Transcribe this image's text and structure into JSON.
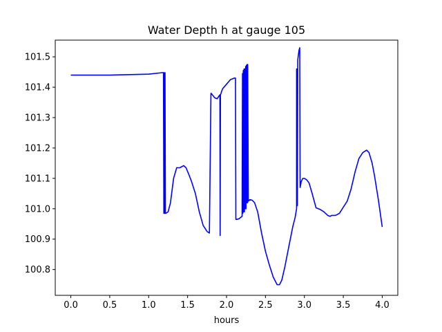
{
  "chart_data": {
    "type": "line",
    "title": "Water Depth h at gauge 105",
    "xlabel": "hours",
    "ylabel": "",
    "xlim": [
      -0.2,
      4.2
    ],
    "ylim": [
      100.715,
      101.555
    ],
    "xticks": [
      0.0,
      0.5,
      1.0,
      1.5,
      2.0,
      2.5,
      3.0,
      3.5,
      4.0
    ],
    "xtick_labels": [
      "0.0",
      "0.5",
      "1.0",
      "1.5",
      "2.0",
      "2.5",
      "3.0",
      "3.5",
      "4.0"
    ],
    "yticks": [
      100.8,
      100.9,
      101.0,
      101.1,
      101.2,
      101.3,
      101.4,
      101.5
    ],
    "ytick_labels": [
      "100.8",
      "100.9",
      "101.0",
      "101.1",
      "101.2",
      "101.3",
      "101.4",
      "101.5"
    ],
    "grid": false,
    "series": [
      {
        "color": "#0000ff",
        "x": [
          0.0,
          0.5,
          1.0,
          1.18,
          1.19,
          1.195,
          1.2,
          1.205,
          1.21,
          1.215,
          1.22,
          1.25,
          1.28,
          1.32,
          1.36,
          1.4,
          1.45,
          1.48,
          1.52,
          1.55,
          1.6,
          1.65,
          1.7,
          1.75,
          1.78,
          1.8,
          1.802,
          1.85,
          1.88,
          1.9,
          1.915,
          1.918,
          1.922,
          1.93,
          1.935,
          1.95,
          2.0,
          2.05,
          2.1,
          2.115,
          2.12,
          2.13,
          2.16,
          2.2,
          2.205,
          2.21,
          2.215,
          2.22,
          2.225,
          2.23,
          2.235,
          2.24,
          2.245,
          2.25,
          2.255,
          2.26,
          2.265,
          2.27,
          2.272,
          2.28,
          2.3,
          2.33,
          2.36,
          2.4,
          2.45,
          2.5,
          2.55,
          2.6,
          2.65,
          2.68,
          2.71,
          2.75,
          2.8,
          2.85,
          2.88,
          2.9,
          2.9,
          2.905,
          2.91,
          2.915,
          2.92,
          2.93,
          2.935,
          2.94,
          2.945,
          2.96,
          2.98,
          3.0,
          3.03,
          3.06,
          3.1,
          3.15,
          3.2,
          3.25,
          3.3,
          3.33,
          3.35,
          3.4,
          3.45,
          3.5,
          3.55,
          3.6,
          3.65,
          3.7,
          3.75,
          3.8,
          3.83,
          3.87,
          3.9,
          3.95,
          4.0
        ],
        "y": [
          101.44,
          101.44,
          101.443,
          101.448,
          101.448,
          100.985,
          101.448,
          100.985,
          101.448,
          100.985,
          100.985,
          100.99,
          101.02,
          101.1,
          101.135,
          101.135,
          101.142,
          101.135,
          101.11,
          101.09,
          101.05,
          100.99,
          100.945,
          100.925,
          100.92,
          101.38,
          101.38,
          101.365,
          101.362,
          101.37,
          101.375,
          100.912,
          101.375,
          101.38,
          101.385,
          101.395,
          101.41,
          101.425,
          101.43,
          101.43,
          100.965,
          100.965,
          100.967,
          100.975,
          101.445,
          100.985,
          101.455,
          100.99,
          101.46,
          100.99,
          101.46,
          101.0,
          101.468,
          101.0,
          101.472,
          101.02,
          101.475,
          101.02,
          101.475,
          101.025,
          101.03,
          101.028,
          101.02,
          100.99,
          100.92,
          100.86,
          100.815,
          100.775,
          100.75,
          100.75,
          100.765,
          100.81,
          100.875,
          100.94,
          100.97,
          101.0,
          101.46,
          101.46,
          101.01,
          101.49,
          101.5,
          101.52,
          101.525,
          101.53,
          101.07,
          101.09,
          101.1,
          101.1,
          101.095,
          101.085,
          101.05,
          101.003,
          100.998,
          100.99,
          100.978,
          100.975,
          100.978,
          100.978,
          100.985,
          101.005,
          101.025,
          101.065,
          101.12,
          101.165,
          101.185,
          101.193,
          101.185,
          101.15,
          101.11,
          101.03,
          100.94
        ]
      }
    ]
  }
}
